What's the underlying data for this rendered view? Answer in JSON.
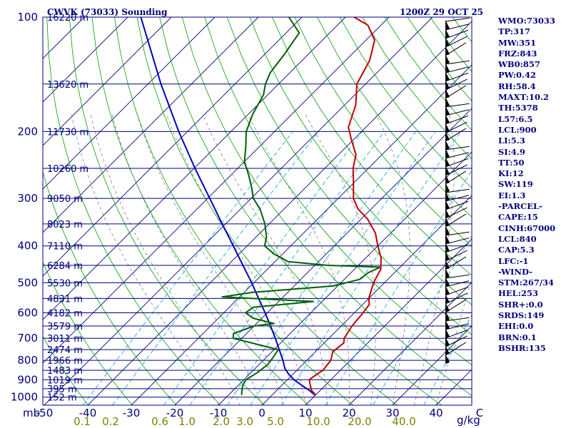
{
  "title": {
    "station": "CWVK (73033) Sounding",
    "time": "1200Z 29 OCT 25"
  },
  "axis": {
    "p_unit": "mb",
    "mix_unit": "g/kg"
  },
  "indices": [
    "WMO:73033",
    "TP:317",
    "MW:351",
    "FRZ:843",
    "WB0:857",
    "PW:0.42",
    "RH:58.4",
    "MAXT:10.2",
    "TH:5378",
    "L57:6.5",
    "LCL:900",
    "LI:5.3",
    "SI:4.9",
    "TT:50",
    "KI:12",
    "SW:119",
    "EI:1.3",
    "-PARCEL-",
    "CAPE:15",
    "CINH:67000",
    "LCL:840",
    "CAP:5.3",
    "LFC:-1",
    "-WIND-",
    "STM:267/34",
    "HEL:253",
    "SHR+:0.0",
    "SRDS:149",
    "EHI:0.0",
    "BRN:0.1",
    "BSHR:135"
  ],
  "colors": {
    "frame": "#000080",
    "temperature": "#c00000",
    "dewpoint": "#006000",
    "parcel": "#0000c0",
    "dry_adiabat": "#00a000",
    "moist_adiabat": "#808080",
    "mixing_ratio": "#00a0e0",
    "wind_barb": "#000000"
  },
  "chart_data": {
    "type": "skew-t",
    "title": "CWVK (73033) Sounding",
    "time": "1200Z 29 OCT 25",
    "pressure_ticks": [
      "100",
      "200",
      "300",
      "400",
      "500",
      "600",
      "700",
      "800",
      "900",
      "1000"
    ],
    "temperature_ticks": [
      "-50",
      "-40",
      "-30",
      "-20",
      "-10",
      "0",
      "10",
      "20",
      "30",
      "40",
      "C"
    ],
    "mixing_ratio_labels": [
      "0.1",
      "0.2",
      "0.6",
      "1.0",
      "2.0",
      "3.0",
      "5.0",
      "10.0",
      "20.0",
      "40.0"
    ],
    "height_labels": [
      {
        "p": 100,
        "label": "16220 m"
      },
      {
        "p": 150,
        "label": "13620 m"
      },
      {
        "p": 200,
        "label": "11730 m"
      },
      {
        "p": 250,
        "label": "10260 m"
      },
      {
        "p": 300,
        "label": "9050 m"
      },
      {
        "p": 350,
        "label": "8023 m"
      },
      {
        "p": 400,
        "label": "7110 m"
      },
      {
        "p": 450,
        "label": "6284 m"
      },
      {
        "p": 500,
        "label": "5530 m"
      },
      {
        "p": 550,
        "label": "4831 m"
      },
      {
        "p": 600,
        "label": "4182 m"
      },
      {
        "p": 650,
        "label": "3579 m"
      },
      {
        "p": 700,
        "label": "3011 m"
      },
      {
        "p": 750,
        "label": "2474 m"
      },
      {
        "p": 800,
        "label": "1966 m"
      },
      {
        "p": 850,
        "label": "1483 m"
      },
      {
        "p": 900,
        "label": "1019 m"
      },
      {
        "p": 950,
        "label": "395 m"
      },
      {
        "p": 1000,
        "label": "152 m"
      }
    ],
    "temperature": [
      [
        987,
        10.0
      ],
      [
        960,
        8.0
      ],
      [
        930,
        6.5
      ],
      [
        900,
        5.0
      ],
      [
        870,
        5.5
      ],
      [
        850,
        6.0
      ],
      [
        800,
        5.5
      ],
      [
        760,
        4.0
      ],
      [
        720,
        4.5
      ],
      [
        700,
        3.5
      ],
      [
        650,
        2.5
      ],
      [
        600,
        2.0
      ],
      [
        570,
        1.5
      ],
      [
        550,
        0.0
      ],
      [
        500,
        -2.5
      ],
      [
        460,
        -4.0
      ],
      [
        430,
        -6.5
      ],
      [
        400,
        -10.0
      ],
      [
        370,
        -13.5
      ],
      [
        340,
        -18.5
      ],
      [
        320,
        -23.0
      ],
      [
        300,
        -26.5
      ],
      [
        270,
        -30.5
      ],
      [
        250,
        -33.5
      ],
      [
        230,
        -36.0
      ],
      [
        210,
        -40.5
      ],
      [
        195,
        -44.0
      ],
      [
        170,
        -47.5
      ],
      [
        150,
        -52.0
      ],
      [
        130,
        -54.5
      ],
      [
        115,
        -58.0
      ],
      [
        105,
        -63.0
      ],
      [
        100,
        -68.0
      ]
    ],
    "dewpoint": [
      [
        987,
        -7.0
      ],
      [
        960,
        -8.0
      ],
      [
        930,
        -9.0
      ],
      [
        900,
        -9.5
      ],
      [
        860,
        -8.5
      ],
      [
        820,
        -8.0
      ],
      [
        780,
        -8.5
      ],
      [
        750,
        -9.0
      ],
      [
        700,
        -22.0
      ],
      [
        680,
        -23.0
      ],
      [
        650,
        -20.0
      ],
      [
        640,
        -16.0
      ],
      [
        620,
        -22.0
      ],
      [
        600,
        -25.0
      ],
      [
        580,
        -24.5
      ],
      [
        560,
        -12.0
      ],
      [
        545,
        -34.0
      ],
      [
        530,
        -28.0
      ],
      [
        510,
        -11.0
      ],
      [
        490,
        -6.5
      ],
      [
        470,
        -6.0
      ],
      [
        455,
        -4.5
      ],
      [
        450,
        -17.0
      ],
      [
        440,
        -27.0
      ],
      [
        420,
        -32.0
      ],
      [
        400,
        -36.0
      ],
      [
        380,
        -37.5
      ],
      [
        350,
        -41.0
      ],
      [
        320,
        -45.5
      ],
      [
        300,
        -49.5
      ],
      [
        280,
        -52.5
      ],
      [
        260,
        -56.0
      ],
      [
        240,
        -60.0
      ],
      [
        220,
        -63.0
      ],
      [
        200,
        -66.5
      ],
      [
        180,
        -69.0
      ],
      [
        160,
        -71.0
      ],
      [
        150,
        -73.0
      ],
      [
        140,
        -74.5
      ],
      [
        125,
        -75.5
      ],
      [
        110,
        -77.0
      ],
      [
        100,
        -83.0
      ]
    ],
    "parcel": [
      [
        987,
        9.8
      ],
      [
        960,
        7.5
      ],
      [
        930,
        4.5
      ],
      [
        900,
        1.5
      ],
      [
        870,
        -1.0
      ],
      [
        840,
        -3.2
      ],
      [
        800,
        -5.5
      ],
      [
        750,
        -8.8
      ],
      [
        700,
        -12.3
      ],
      [
        650,
        -16.2
      ],
      [
        600,
        -20.5
      ],
      [
        550,
        -25.3
      ],
      [
        500,
        -30.5
      ],
      [
        450,
        -36.5
      ],
      [
        400,
        -43.2
      ],
      [
        350,
        -50.8
      ],
      [
        300,
        -59.5
      ],
      [
        250,
        -69.8
      ],
      [
        200,
        -82.0
      ],
      [
        150,
        -97.0
      ],
      [
        100,
        -117.0
      ]
    ]
  }
}
